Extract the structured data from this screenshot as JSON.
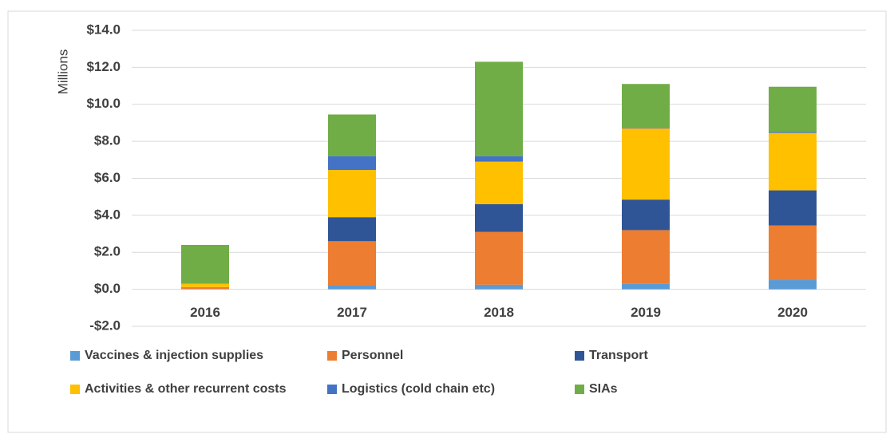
{
  "chart_data": {
    "type": "bar",
    "stacked": true,
    "y_axis_label": "Millions",
    "categories": [
      "2016",
      "2017",
      "2018",
      "2019",
      "2020"
    ],
    "series": [
      {
        "name": "Vaccines & injection supplies",
        "color": "#5b9bd5",
        "values": [
          0.02,
          0.2,
          0.25,
          0.3,
          0.5
        ]
      },
      {
        "name": "Personnel",
        "color": "#ed7d31",
        "values": [
          0.1,
          2.4,
          2.85,
          2.9,
          2.95
        ]
      },
      {
        "name": "Transport",
        "color": "#2f5597",
        "values": [
          0,
          1.3,
          1.5,
          1.65,
          1.9
        ]
      },
      {
        "name": "Activities & other recurrent costs",
        "color": "#ffc000",
        "values": [
          0.18,
          2.55,
          2.3,
          3.85,
          3.1
        ]
      },
      {
        "name": "Logistics (cold chain etc)",
        "color": "#4472c4",
        "values": [
          0,
          0.75,
          0.3,
          0.05,
          0.05
        ]
      },
      {
        "name": "SIAs",
        "color": "#70ad47",
        "values": [
          2.1,
          2.25,
          5.1,
          2.35,
          2.45
        ]
      }
    ],
    "ylim": [
      -2,
      14
    ],
    "yticks": [
      {
        "value": -2,
        "label": "-$2.0"
      },
      {
        "value": 0,
        "label": "$0.0"
      },
      {
        "value": 2,
        "label": "$2.0"
      },
      {
        "value": 4,
        "label": "$4.0"
      },
      {
        "value": 6,
        "label": "$6.0"
      },
      {
        "value": 8,
        "label": "$8.0"
      },
      {
        "value": 10,
        "label": "$10.0"
      },
      {
        "value": 12,
        "label": "$12.0"
      },
      {
        "value": 14,
        "label": "$14.0"
      }
    ],
    "grid": true,
    "legend": "bottom"
  }
}
